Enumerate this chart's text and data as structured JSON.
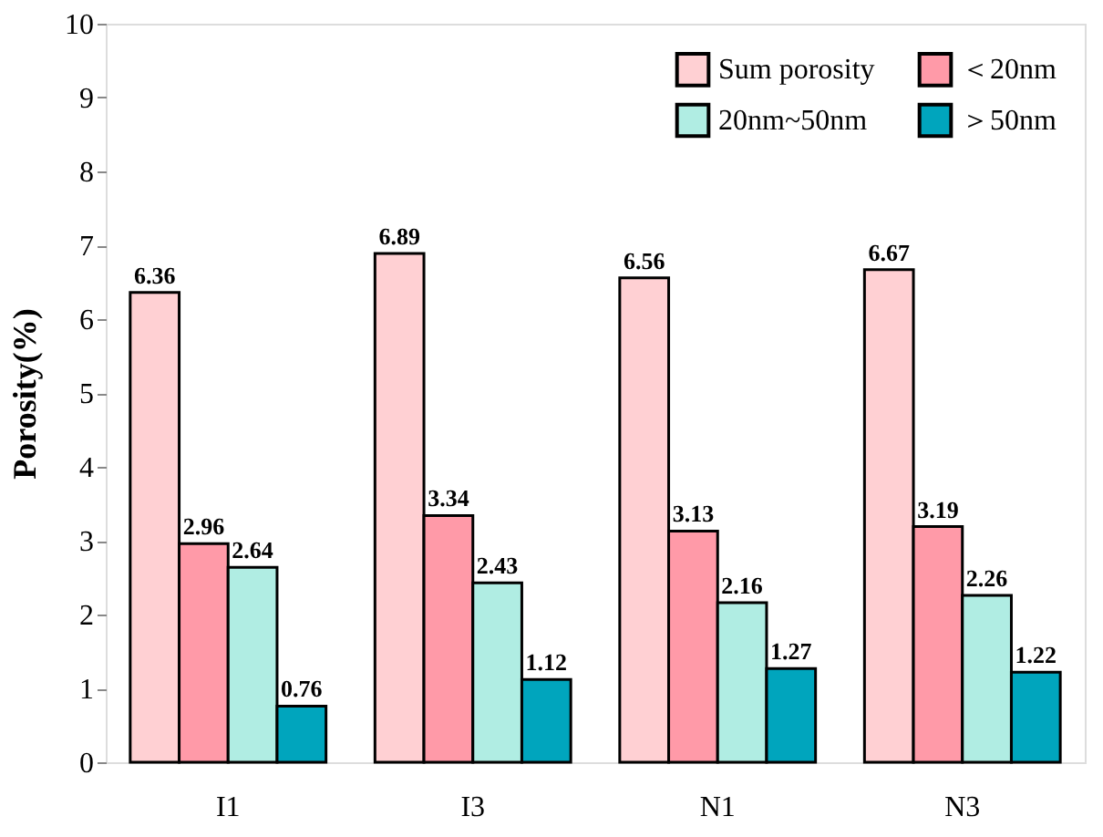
{
  "chart_data": {
    "type": "bar",
    "ylabel": "Porosity(%)",
    "categories": [
      "I1",
      "I3",
      "N1",
      "N3"
    ],
    "series": [
      {
        "name": "Sum porosity",
        "color": "#ffd0d3",
        "values": [
          6.36,
          6.89,
          6.56,
          6.67
        ]
      },
      {
        "name": "＜20nm",
        "color": "#ff9aa8",
        "values": [
          2.96,
          3.34,
          3.13,
          3.19
        ]
      },
      {
        "name": "20nm~50nm",
        "color": "#b0ede3",
        "values": [
          2.64,
          2.43,
          2.16,
          2.26
        ]
      },
      {
        "name": "＞50nm",
        "color": "#00a5bd",
        "values": [
          0.76,
          1.12,
          1.27,
          1.22
        ]
      }
    ],
    "ylim": [
      0,
      10
    ],
    "yticks": [
      0,
      1,
      2,
      3,
      4,
      5,
      6,
      7,
      8,
      9,
      10
    ],
    "data_labels": true,
    "legend": "top right",
    "grid": false
  }
}
